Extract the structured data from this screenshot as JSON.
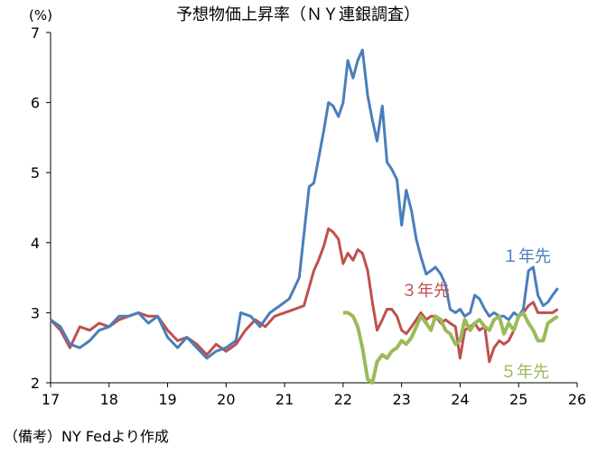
{
  "chart_data": {
    "type": "line",
    "title": "予想物価上昇率（ＮＹ連銀調査）",
    "ylabel": "(%)",
    "ylim": [
      2,
      7
    ],
    "yticks": [
      2,
      3,
      4,
      5,
      6,
      7
    ],
    "xlim": [
      17,
      26
    ],
    "xticks": [
      17,
      18,
      19,
      20,
      21,
      22,
      23,
      24,
      25,
      26
    ],
    "grid": "none",
    "source": "（備考）NY Fedより作成",
    "series": [
      {
        "name": "１年先",
        "color": "#4a7ebb",
        "x": [
          17.0,
          17.17,
          17.33,
          17.5,
          17.67,
          17.83,
          18.0,
          18.17,
          18.33,
          18.5,
          18.67,
          18.83,
          19.0,
          19.17,
          19.33,
          19.5,
          19.67,
          19.83,
          20.0,
          20.17,
          20.25,
          20.42,
          20.58,
          20.75,
          20.92,
          21.08,
          21.25,
          21.42,
          21.5,
          21.58,
          21.67,
          21.75,
          21.83,
          21.92,
          22.0,
          22.08,
          22.17,
          22.25,
          22.33,
          22.42,
          22.5,
          22.58,
          22.67,
          22.75,
          22.83,
          22.92,
          23.0,
          23.08,
          23.17,
          23.25,
          23.33,
          23.42,
          23.5,
          23.58,
          23.67,
          23.75,
          23.83,
          23.92,
          24.0,
          24.08,
          24.17,
          24.25,
          24.33,
          24.42,
          24.5,
          24.58,
          24.67,
          24.75,
          24.83,
          24.92,
          25.0,
          25.08,
          25.17,
          25.25,
          25.33,
          25.42,
          25.5,
          25.58,
          25.67
        ],
        "values": [
          2.9,
          2.8,
          2.55,
          2.5,
          2.6,
          2.75,
          2.8,
          2.95,
          2.95,
          3.0,
          2.85,
          2.95,
          2.65,
          2.5,
          2.65,
          2.5,
          2.35,
          2.45,
          2.5,
          2.6,
          3.0,
          2.95,
          2.8,
          3.0,
          3.1,
          3.2,
          3.5,
          4.8,
          4.85,
          5.2,
          5.6,
          6.0,
          5.95,
          5.8,
          6.0,
          6.6,
          6.35,
          6.6,
          6.75,
          6.1,
          5.75,
          5.45,
          5.95,
          5.15,
          5.05,
          4.9,
          4.25,
          4.75,
          4.45,
          4.05,
          3.8,
          3.55,
          3.6,
          3.65,
          3.55,
          3.4,
          3.05,
          3.0,
          3.05,
          2.95,
          3.0,
          3.25,
          3.2,
          3.05,
          2.95,
          3.0,
          2.95,
          2.95,
          2.9,
          3.0,
          2.95,
          3.05,
          3.6,
          3.65,
          3.25,
          3.1,
          3.15,
          3.25,
          3.35
        ]
      },
      {
        "name": "３年先",
        "color": "#c0504d",
        "x": [
          17.0,
          17.17,
          17.33,
          17.5,
          17.67,
          17.83,
          18.0,
          18.17,
          18.33,
          18.5,
          18.67,
          18.83,
          19.0,
          19.17,
          19.33,
          19.5,
          19.67,
          19.83,
          20.0,
          20.17,
          20.33,
          20.5,
          20.67,
          20.83,
          21.0,
          21.17,
          21.33,
          21.5,
          21.58,
          21.67,
          21.75,
          21.83,
          21.92,
          22.0,
          22.08,
          22.17,
          22.25,
          22.33,
          22.42,
          22.5,
          22.58,
          22.67,
          22.75,
          22.83,
          22.92,
          23.0,
          23.08,
          23.17,
          23.25,
          23.33,
          23.42,
          23.5,
          23.58,
          23.67,
          23.75,
          23.83,
          23.92,
          24.0,
          24.08,
          24.17,
          24.25,
          24.33,
          24.42,
          24.5,
          24.58,
          24.67,
          24.75,
          24.83,
          24.92,
          25.0,
          25.08,
          25.17,
          25.25,
          25.33,
          25.42,
          25.5,
          25.58,
          25.67
        ],
        "values": [
          2.9,
          2.75,
          2.5,
          2.8,
          2.75,
          2.85,
          2.8,
          2.9,
          2.95,
          3.0,
          2.95,
          2.95,
          2.75,
          2.6,
          2.65,
          2.55,
          2.4,
          2.55,
          2.45,
          2.55,
          2.75,
          2.9,
          2.8,
          2.95,
          3.0,
          3.05,
          3.1,
          3.6,
          3.75,
          3.95,
          4.2,
          4.15,
          4.05,
          3.7,
          3.85,
          3.75,
          3.9,
          3.85,
          3.6,
          3.15,
          2.75,
          2.9,
          3.05,
          3.05,
          2.95,
          2.75,
          2.7,
          2.8,
          2.9,
          3.0,
          2.9,
          2.95,
          2.95,
          2.85,
          2.9,
          2.85,
          2.8,
          2.35,
          2.75,
          2.8,
          2.85,
          2.75,
          2.8,
          2.3,
          2.5,
          2.6,
          2.55,
          2.6,
          2.75,
          2.95,
          3.0,
          3.1,
          3.15,
          3.0,
          3.0,
          3.0,
          3.0,
          3.05
        ]
      },
      {
        "name": "５年先",
        "color": "#9bbb59",
        "x": [
          22.0,
          22.08,
          22.17,
          22.25,
          22.33,
          22.42,
          22.5,
          22.58,
          22.67,
          22.75,
          22.83,
          22.92,
          23.0,
          23.08,
          23.17,
          23.25,
          23.33,
          23.42,
          23.5,
          23.58,
          23.67,
          23.75,
          23.83,
          23.92,
          24.0,
          24.08,
          24.17,
          24.25,
          24.33,
          24.42,
          24.5,
          24.58,
          24.67,
          24.75,
          24.83,
          24.92,
          25.0,
          25.08,
          25.17,
          25.25,
          25.33,
          25.42,
          25.5,
          25.58,
          25.67
        ],
        "values": [
          3.0,
          3.0,
          2.95,
          2.8,
          2.5,
          2.05,
          2.0,
          2.3,
          2.4,
          2.35,
          2.45,
          2.5,
          2.6,
          2.55,
          2.65,
          2.8,
          2.95,
          2.85,
          2.75,
          2.95,
          2.9,
          2.75,
          2.7,
          2.55,
          2.6,
          2.9,
          2.75,
          2.85,
          2.9,
          2.8,
          2.75,
          2.9,
          2.95,
          2.7,
          2.85,
          2.75,
          2.95,
          3.0,
          2.85,
          2.75,
          2.6,
          2.6,
          2.85,
          2.9,
          2.95
        ]
      }
    ]
  }
}
